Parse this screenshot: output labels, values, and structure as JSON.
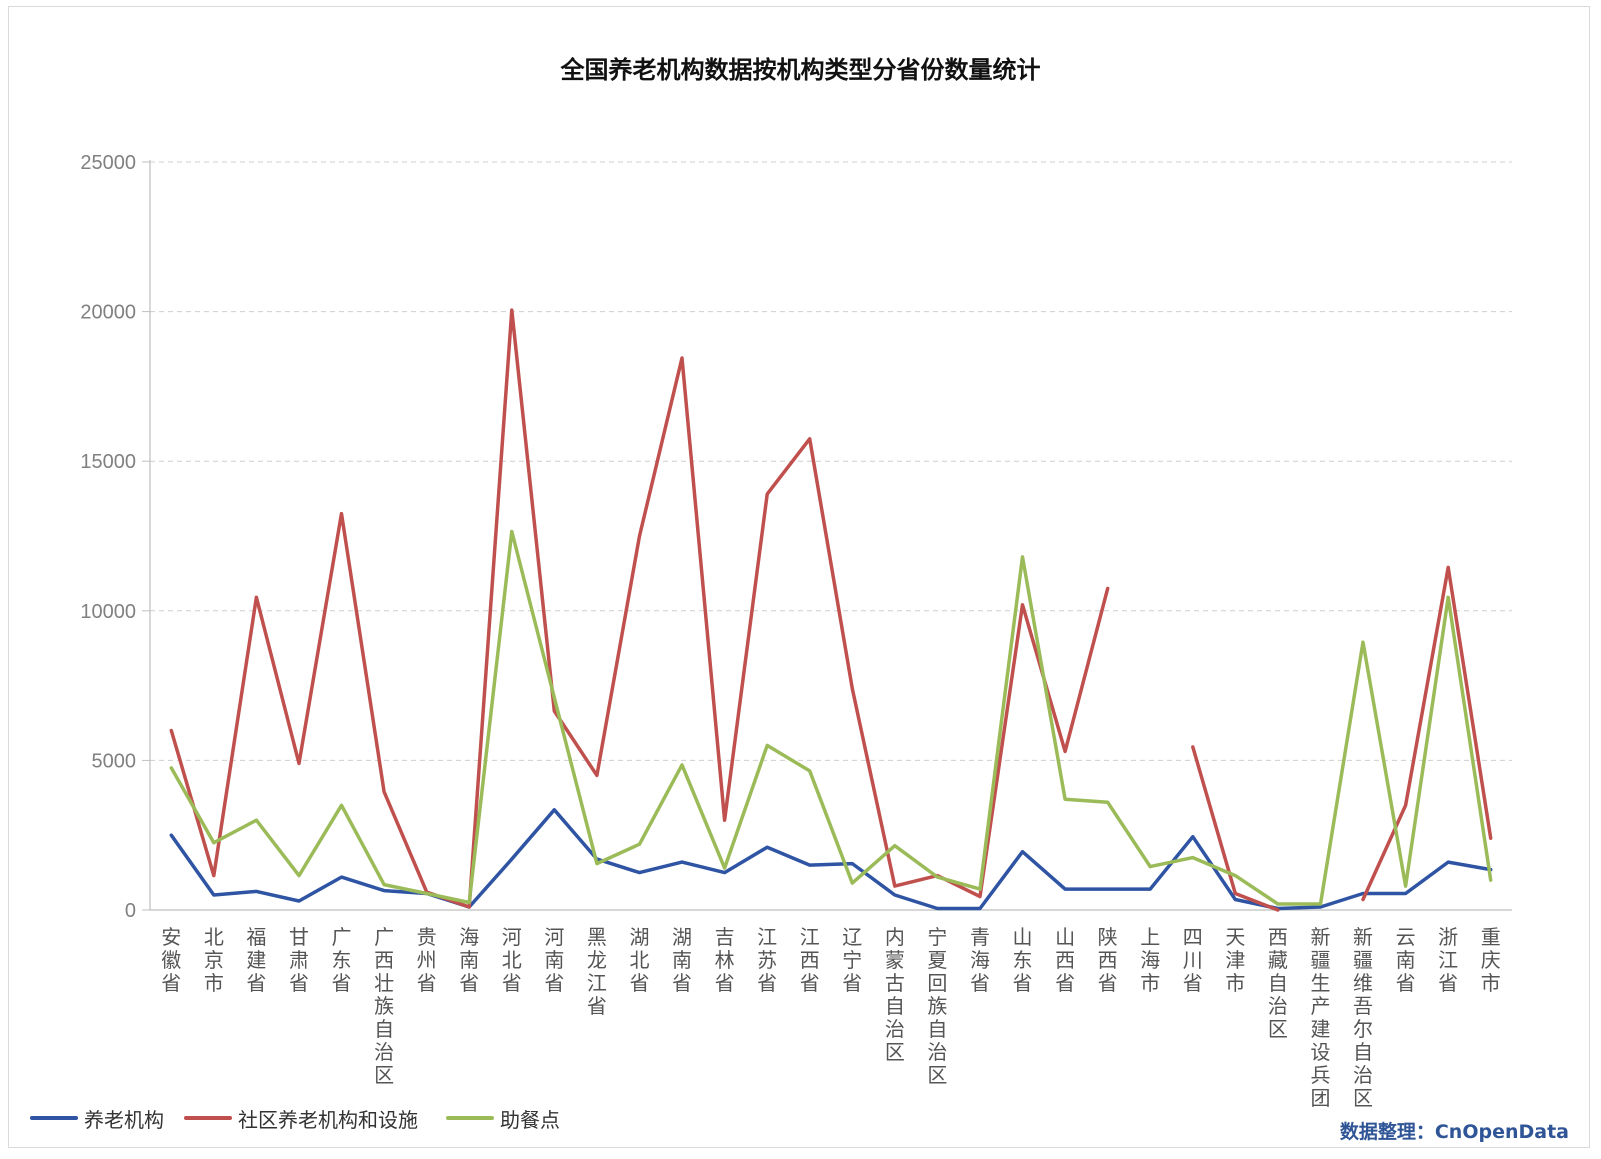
{
  "chart_data": {
    "type": "line",
    "title": "全国养老机构数据按机构类型分省份数量统计",
    "xlabel": "",
    "ylabel": "",
    "ylim": [
      0,
      25000
    ],
    "yticks": [
      "0",
      "5000",
      "10000",
      "15000",
      "20000",
      "25000"
    ],
    "grid": "horizontal dashed",
    "legend_position": "bottom-left",
    "categories": [
      "安徽省",
      "北京市",
      "福建省",
      "甘肃省",
      "广东省",
      "广西壮族自治区",
      "贵州省",
      "海南省",
      "河北省",
      "河南省",
      "黑龙江省",
      "湖北省",
      "湖南省",
      "吉林省",
      "江苏省",
      "江西省",
      "辽宁省",
      "内蒙古自治区",
      "宁夏回族自治区",
      "青海省",
      "山东省",
      "山西省",
      "陕西省",
      "上海市",
      "四川省",
      "天津市",
      "西藏自治区",
      "新疆生产建设兵团",
      "新疆维吾尔自治区",
      "云南省",
      "浙江省",
      "重庆市"
    ],
    "series": [
      {
        "name": "养老机构",
        "color": "#2e54a3",
        "values": [
          2500,
          500,
          620,
          300,
          1100,
          650,
          550,
          100,
          1700,
          3350,
          1700,
          1250,
          1600,
          1250,
          2100,
          1500,
          1550,
          500,
          50,
          50,
          1950,
          700,
          700,
          700,
          2450,
          350,
          50,
          100,
          550,
          550,
          1600,
          1350
        ]
      },
      {
        "name": "社区养老机构和设施",
        "color": "#c0504d",
        "values": [
          6000,
          1150,
          10450,
          4900,
          13250,
          3950,
          600,
          100,
          20050,
          6650,
          4500,
          12500,
          18450,
          3000,
          13900,
          15750,
          7400,
          800,
          1150,
          450,
          10200,
          5300,
          10750,
          null,
          5450,
          550,
          0,
          null,
          350,
          3500,
          11450,
          2400
        ]
      },
      {
        "name": "助餐点",
        "color": "#9bbb59",
        "values": [
          4750,
          2250,
          3000,
          1150,
          3500,
          850,
          550,
          250,
          12650,
          7100,
          1550,
          2200,
          4850,
          1400,
          5500,
          4650,
          900,
          2150,
          1100,
          700,
          11800,
          3700,
          3600,
          1450,
          1750,
          1150,
          200,
          200,
          8950,
          800,
          10450,
          1000
        ]
      }
    ]
  },
  "source_note": "数据整理：CnOpenData"
}
